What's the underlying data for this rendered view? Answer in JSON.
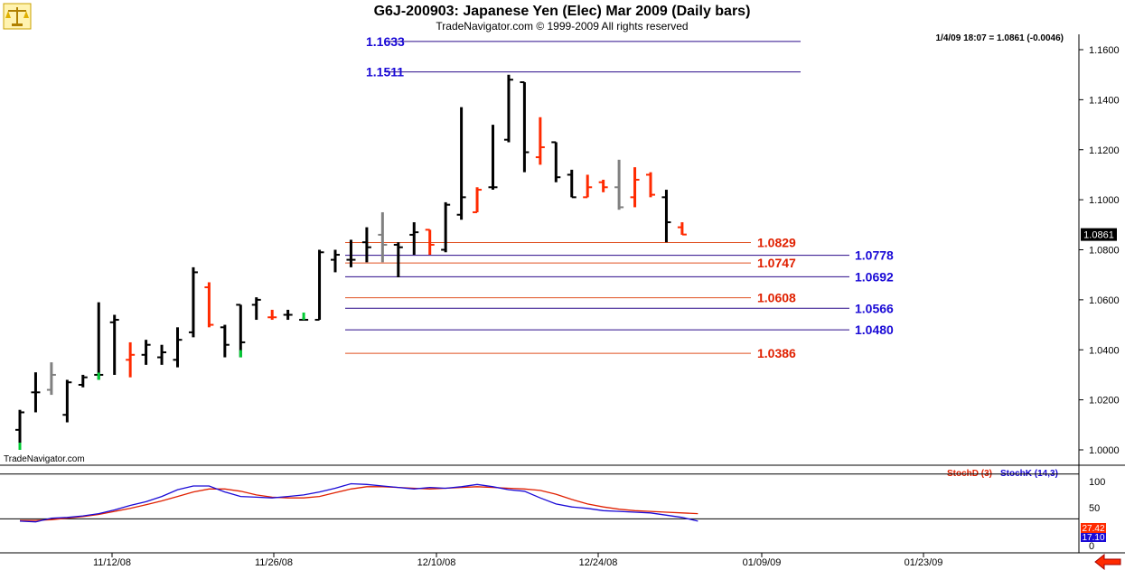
{
  "header": {
    "title": "G6J-200903:  Japanese Yen (Elec) Mar 2009  (Daily bars)",
    "subtitle": "TradeNavigator.com © 1999-2009 All rights reserved",
    "readout": "1/4/09 18:07 = 1.0861 (-0.0046)",
    "watermark": "TradeNavigator.com",
    "last_price": "1.0861"
  },
  "colors": {
    "bar_up": "#000000",
    "bar_down": "#ff2a00",
    "bar_gray": "#808080",
    "bar_green": "#00cc33",
    "blue_level": "#1a0ad6",
    "red_level": "#e02000",
    "stoch_d": "#e02000",
    "stoch_k": "#1a0ad6"
  },
  "chart_data": [
    {
      "type": "ohlc",
      "ylim": [
        0.99,
        1.166
      ],
      "y_ticks": [
        "1.0000",
        "1.0200",
        "1.0400",
        "1.0600",
        "1.0800",
        "1.1000",
        "1.1200",
        "1.1400",
        "1.1600"
      ],
      "x_ticks": [
        "11/12/08",
        "11/26/08",
        "12/10/08",
        "12/24/08",
        "01/09/09",
        "01/23/09"
      ],
      "levels_blue": [
        {
          "label": "1.1633",
          "value": 1.1633
        },
        {
          "label": "1.1511",
          "value": 1.1511
        },
        {
          "label": "1.0778",
          "value": 1.0778
        },
        {
          "label": "1.0692",
          "value": 1.0692
        },
        {
          "label": "1.0566",
          "value": 1.0566
        },
        {
          "label": "1.0480",
          "value": 1.048
        }
      ],
      "levels_red": [
        {
          "label": "1.0829",
          "value": 1.0829
        },
        {
          "label": "1.0747",
          "value": 1.0747
        },
        {
          "label": "1.0608",
          "value": 1.0608
        },
        {
          "label": "1.0386",
          "value": 1.0386
        }
      ],
      "bars": [
        {
          "o": 1.008,
          "h": 1.016,
          "l": 1.0,
          "c": 1.015,
          "k": "g"
        },
        {
          "o": 1.023,
          "h": 1.031,
          "l": 1.015,
          "c": 1.023,
          "k": "u"
        },
        {
          "o": 1.024,
          "h": 1.035,
          "l": 1.022,
          "c": 1.03,
          "k": "y"
        },
        {
          "o": 1.014,
          "h": 1.028,
          "l": 1.011,
          "c": 1.027,
          "k": "u"
        },
        {
          "o": 1.026,
          "h": 1.03,
          "l": 1.025,
          "c": 1.029,
          "k": "u"
        },
        {
          "o": 1.03,
          "h": 1.059,
          "l": 1.028,
          "c": 1.03,
          "k": "g"
        },
        {
          "o": 1.051,
          "h": 1.054,
          "l": 1.03,
          "c": 1.052,
          "k": "u"
        },
        {
          "o": 1.036,
          "h": 1.043,
          "l": 1.029,
          "c": 1.038,
          "k": "d"
        },
        {
          "o": 1.038,
          "h": 1.044,
          "l": 1.034,
          "c": 1.042,
          "k": "u"
        },
        {
          "o": 1.037,
          "h": 1.042,
          "l": 1.034,
          "c": 1.039,
          "k": "u"
        },
        {
          "o": 1.036,
          "h": 1.049,
          "l": 1.033,
          "c": 1.044,
          "k": "u"
        },
        {
          "o": 1.047,
          "h": 1.073,
          "l": 1.045,
          "c": 1.071,
          "k": "u"
        },
        {
          "o": 1.065,
          "h": 1.067,
          "l": 1.049,
          "c": 1.05,
          "k": "d"
        },
        {
          "o": 1.049,
          "h": 1.05,
          "l": 1.037,
          "c": 1.042,
          "k": "u"
        },
        {
          "o": 1.058,
          "h": 1.058,
          "l": 1.037,
          "c": 1.043,
          "k": "g"
        },
        {
          "o": 1.058,
          "h": 1.061,
          "l": 1.052,
          "c": 1.06,
          "k": "u"
        },
        {
          "o": 1.053,
          "h": 1.056,
          "l": 1.052,
          "c": 1.053,
          "k": "d"
        },
        {
          "o": 1.054,
          "h": 1.056,
          "l": 1.052,
          "c": 1.054,
          "k": "u"
        },
        {
          "o": 1.052,
          "h": 1.053,
          "l": 1.052,
          "c": 1.052,
          "k": "g"
        },
        {
          "o": 1.052,
          "h": 1.08,
          "l": 1.052,
          "c": 1.079,
          "k": "u"
        },
        {
          "o": 1.076,
          "h": 1.08,
          "l": 1.071,
          "c": 1.078,
          "k": "u"
        },
        {
          "o": 1.076,
          "h": 1.084,
          "l": 1.073,
          "c": 1.076,
          "k": "u"
        },
        {
          "o": 1.083,
          "h": 1.089,
          "l": 1.075,
          "c": 1.081,
          "k": "u"
        },
        {
          "o": 1.086,
          "h": 1.095,
          "l": 1.075,
          "c": 1.082,
          "k": "y"
        },
        {
          "o": 1.082,
          "h": 1.083,
          "l": 1.069,
          "c": 1.081,
          "k": "u"
        },
        {
          "o": 1.086,
          "h": 1.091,
          "l": 1.078,
          "c": 1.087,
          "k": "u"
        },
        {
          "o": 1.088,
          "h": 1.088,
          "l": 1.078,
          "c": 1.082,
          "k": "d"
        },
        {
          "o": 1.08,
          "h": 1.099,
          "l": 1.079,
          "c": 1.098,
          "k": "u"
        },
        {
          "o": 1.094,
          "h": 1.137,
          "l": 1.092,
          "c": 1.101,
          "k": "u"
        },
        {
          "o": 1.095,
          "h": 1.105,
          "l": 1.095,
          "c": 1.104,
          "k": "d"
        },
        {
          "o": 1.105,
          "h": 1.13,
          "l": 1.104,
          "c": 1.105,
          "k": "u"
        },
        {
          "o": 1.124,
          "h": 1.15,
          "l": 1.123,
          "c": 1.148,
          "k": "u"
        },
        {
          "o": 1.147,
          "h": 1.147,
          "l": 1.111,
          "c": 1.119,
          "k": "u"
        },
        {
          "o": 1.117,
          "h": 1.133,
          "l": 1.114,
          "c": 1.121,
          "k": "d"
        },
        {
          "o": 1.123,
          "h": 1.123,
          "l": 1.107,
          "c": 1.109,
          "k": "u"
        },
        {
          "o": 1.11,
          "h": 1.112,
          "l": 1.101,
          "c": 1.101,
          "k": "u"
        },
        {
          "o": 1.101,
          "h": 1.11,
          "l": 1.101,
          "c": 1.105,
          "k": "d"
        },
        {
          "o": 1.107,
          "h": 1.108,
          "l": 1.103,
          "c": 1.105,
          "k": "d"
        },
        {
          "o": 1.105,
          "h": 1.116,
          "l": 1.096,
          "c": 1.097,
          "k": "y"
        },
        {
          "o": 1.101,
          "h": 1.113,
          "l": 1.097,
          "c": 1.108,
          "k": "d"
        },
        {
          "o": 1.11,
          "h": 1.111,
          "l": 1.101,
          "c": 1.102,
          "k": "d"
        },
        {
          "o": 1.101,
          "h": 1.104,
          "l": 1.083,
          "c": 1.091,
          "k": "u"
        },
        {
          "o": 1.089,
          "h": 1.091,
          "l": 1.086,
          "c": 1.0861,
          "k": "d"
        }
      ]
    },
    {
      "type": "line",
      "title": "StochD (3)   StochK (14,3)",
      "ylim": [
        0,
        100
      ],
      "y_ticks": [
        "100",
        "50",
        "0"
      ],
      "last_d": "27.42",
      "last_k": "17.10",
      "series": [
        {
          "name": "StochD (3)",
          "values": [
            18,
            18,
            19,
            21,
            23,
            26,
            30,
            34,
            39,
            44,
            50,
            56,
            60,
            60,
            57,
            52,
            49,
            48,
            48,
            50,
            55,
            60,
            63,
            63,
            62,
            61,
            60,
            61,
            62,
            63,
            62,
            61,
            60,
            58,
            53,
            46,
            40,
            36,
            33,
            31,
            30,
            29,
            28,
            27
          ]
        },
        {
          "name": "StochK (14,3)",
          "values": [
            17,
            16,
            21,
            22,
            24,
            27,
            32,
            38,
            43,
            50,
            59,
            64,
            64,
            56,
            50,
            49,
            48,
            50,
            52,
            56,
            61,
            67,
            66,
            64,
            62,
            60,
            62,
            61,
            63,
            66,
            63,
            59,
            57,
            48,
            40,
            36,
            34,
            31,
            30,
            29,
            28,
            25,
            22,
            17
          ]
        }
      ]
    }
  ]
}
